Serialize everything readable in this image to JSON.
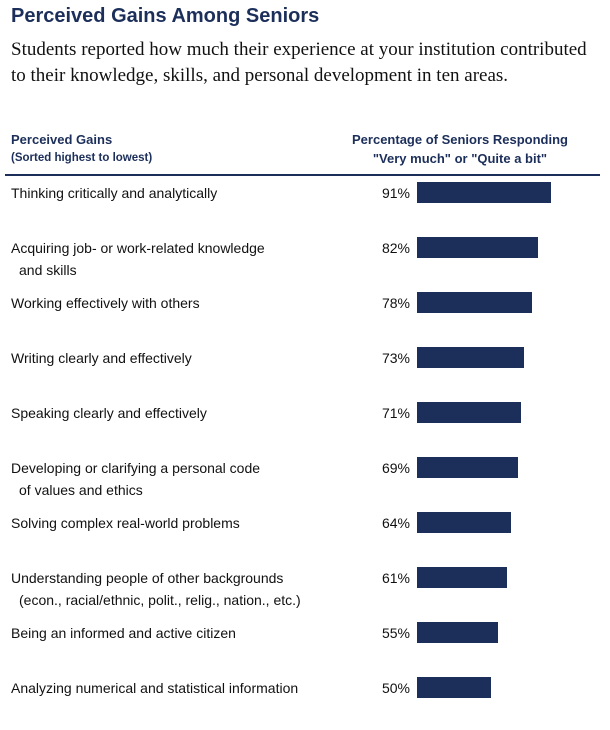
{
  "header": {
    "title": "Perceived Gains Among Seniors",
    "subtitle": "Students reported how much their experience at your institution contributed to their knowledge, skills, and personal development in ten areas."
  },
  "table_header": {
    "left_line1": "Perceived Gains",
    "left_line2": "(Sorted highest to lowest)",
    "right_line1": "Percentage of Seniors Responding",
    "right_line2": "\"Very much\" or \"Quite a bit\""
  },
  "colors": {
    "bar": "#1c2f5a",
    "title": "#1c2f5a"
  },
  "chart_data": {
    "type": "bar",
    "orientation": "horizontal",
    "title": "Perceived Gains Among Seniors",
    "xlabel": "Percentage of Seniors Responding \"Very much\" or \"Quite a bit\"",
    "ylabel": "Perceived Gains",
    "xlim": [
      0,
      100
    ],
    "unit": "%",
    "categories": [
      [
        "Thinking critically and analytically"
      ],
      [
        "Acquiring job- or work-related knowledge",
        "and skills"
      ],
      [
        "Working effectively with others"
      ],
      [
        "Writing clearly and effectively"
      ],
      [
        "Speaking clearly and effectively"
      ],
      [
        "Developing or clarifying a personal code",
        "of values and ethics"
      ],
      [
        "Solving complex real-world problems"
      ],
      [
        "Understanding people of other backgrounds",
        "(econ., racial/ethnic, polit., relig., nation., etc.)"
      ],
      [
        "Being an informed and active citizen"
      ],
      [
        "Analyzing numerical and statistical information"
      ]
    ],
    "values": [
      91,
      82,
      78,
      73,
      71,
      69,
      64,
      61,
      55,
      50
    ]
  }
}
